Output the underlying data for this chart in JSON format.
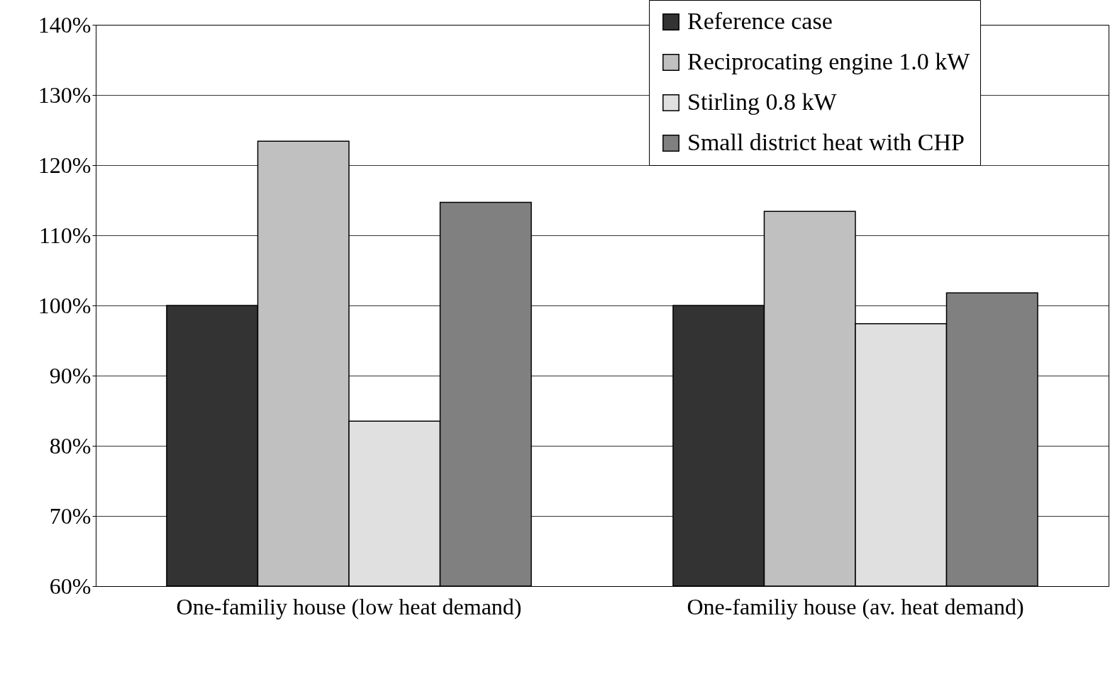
{
  "chart_data": {
    "type": "bar",
    "categories": [
      "One-familiy house\n(low heat demand)",
      "One-familiy house\n(av. heat demand)"
    ],
    "series": [
      {
        "name": "Reference case",
        "color": "#333333",
        "values": [
          100,
          100
        ]
      },
      {
        "name": "Reciprocating engine 1.0 kW",
        "color": "#c0c0c0",
        "values": [
          123.4,
          113.4
        ]
      },
      {
        "name": "Stirling 0.8 kW",
        "color": "#e0e0e0",
        "values": [
          83.5,
          97.4
        ]
      },
      {
        "name": "Small district heat with CHP",
        "color": "#808080",
        "values": [
          114.7,
          101.8
        ]
      }
    ],
    "ylim": [
      60,
      140
    ],
    "yticks": [
      {
        "value": 60,
        "label": "60%"
      },
      {
        "value": 70,
        "label": "70%"
      },
      {
        "value": 80,
        "label": "80%"
      },
      {
        "value": 90,
        "label": "90%"
      },
      {
        "value": 100,
        "label": "100%"
      },
      {
        "value": 110,
        "label": "110%"
      },
      {
        "value": 120,
        "label": "120%"
      },
      {
        "value": 130,
        "label": "130%"
      },
      {
        "value": 140,
        "label": "140%"
      }
    ],
    "grid": "y",
    "legend": "top right"
  }
}
